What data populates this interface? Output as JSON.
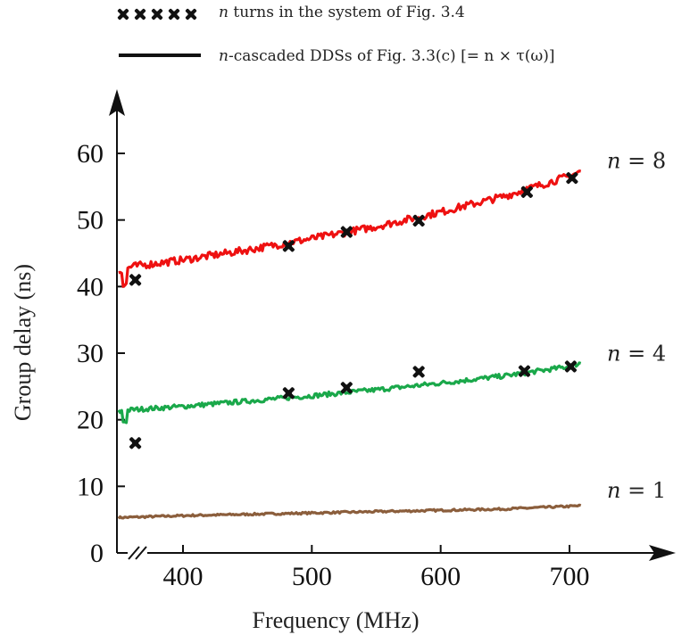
{
  "chart_data": {
    "type": "line",
    "xlabel": "Frequency (MHz)",
    "ylabel": "Group delay (ns)",
    "xlim": [
      350,
      750
    ],
    "ylim": [
      0,
      68
    ],
    "x_ticks": [
      400,
      500,
      600,
      700
    ],
    "x_tick_labels": [
      "400",
      "500",
      "600",
      "700"
    ],
    "y_ticks": [
      0,
      10,
      20,
      30,
      40,
      50,
      60
    ],
    "y_tick_labels": [
      "0",
      "10",
      "20",
      "30",
      "40",
      "50",
      "60"
    ],
    "x_axis_break": true,
    "grid": false,
    "legend": {
      "placement": "top",
      "entries": [
        {
          "marker": "filled-x",
          "color": "#111111",
          "label_var": "n",
          "label_rest": " turns in the system of Fig. 3.4"
        },
        {
          "marker": "line",
          "color": "#111111",
          "label_var": "n",
          "label_rest": "-cascaded DDSs of Fig. 3.3(c) [= n × τ(ω)]"
        }
      ]
    },
    "series": [
      {
        "annotation_var": "n",
        "annotation_rest": " = 1",
        "color": "#8B5E3C",
        "type": "line",
        "x": [
          350,
          400,
          450,
          500,
          550,
          600,
          650,
          700,
          710
        ],
        "y": [
          5.3,
          5.6,
          5.8,
          6.0,
          6.2,
          6.4,
          6.6,
          7.0,
          7.1
        ]
      },
      {
        "annotation_var": "n",
        "annotation_rest": " = 4",
        "color": "#1aa84a",
        "type": "line",
        "x": [
          350,
          360,
          400,
          450,
          500,
          550,
          600,
          650,
          700,
          710
        ],
        "y": [
          21.2,
          21.5,
          22.0,
          22.8,
          23.6,
          24.5,
          25.5,
          26.6,
          28.0,
          28.6
        ],
        "markers": {
          "x": [
            363,
            482,
            527,
            583,
            665,
            701
          ],
          "y": [
            16.5,
            24.0,
            24.8,
            27.2,
            27.3,
            28.0
          ]
        }
      },
      {
        "annotation_var": "n",
        "annotation_rest": " = 8",
        "color": "#ee1111",
        "type": "line",
        "x": [
          350,
          360,
          400,
          450,
          500,
          550,
          600,
          650,
          700,
          710
        ],
        "y": [
          42.3,
          43.0,
          44.0,
          45.5,
          47.2,
          49.0,
          51.2,
          53.6,
          56.6,
          57.4
        ],
        "markers": {
          "x": [
            363,
            482,
            527,
            583,
            667,
            702
          ],
          "y": [
            41.0,
            46.1,
            48.2,
            49.9,
            54.2,
            56.3
          ]
        }
      }
    ]
  }
}
